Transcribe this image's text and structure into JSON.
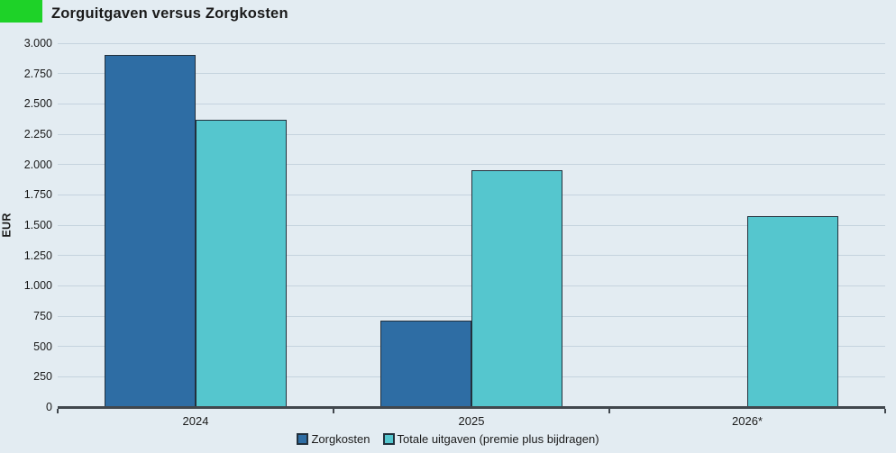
{
  "header": {
    "title": "Zorguitgaven versus Zorgkosten"
  },
  "colors": {
    "background": "#e3ecf2",
    "logo_green": "#1ed228",
    "gridline": "#c5d3de",
    "axis": "#41474d",
    "bar_border": "#22303c",
    "text": "#1a1a1a",
    "series_zorgkosten": "#2e6da4",
    "series_totale_uitgaven": "#55c6ce"
  },
  "chart_data": {
    "type": "bar",
    "title": "Zorguitgaven versus Zorgkosten",
    "xlabel": "",
    "ylabel": "EUR",
    "categories": [
      "2024",
      "2025",
      "2026*"
    ],
    "series": [
      {
        "name": "Zorgkosten",
        "color": "#2e6da4",
        "values": [
          2900,
          710,
          0
        ]
      },
      {
        "name": "Totale uitgaven (premie plus bijdragen)",
        "color": "#55c6ce",
        "values": [
          2370,
          1950,
          1575
        ]
      }
    ],
    "ylim": [
      0,
      3000
    ],
    "ytick_step": 250,
    "ytick_labels": [
      "0",
      "250",
      "500",
      "750",
      "1.000",
      "1.250",
      "1.500",
      "1.750",
      "2.000",
      "2.250",
      "2.500",
      "2.750",
      "3.000"
    ],
    "grid": true,
    "legend_position": "bottom"
  }
}
